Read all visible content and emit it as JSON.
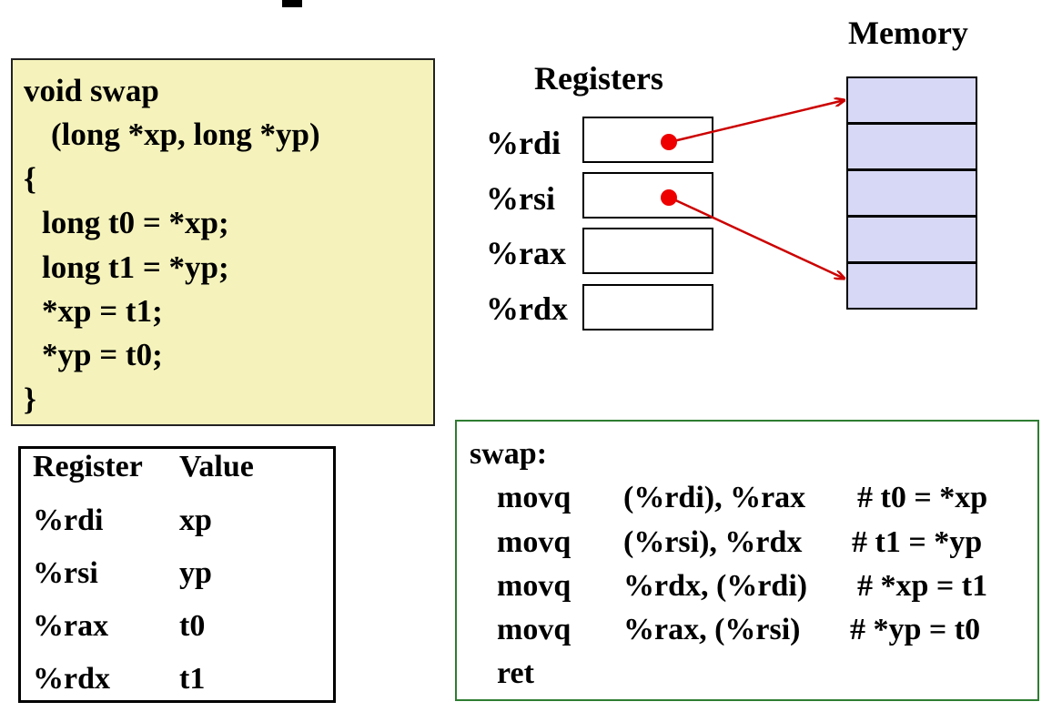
{
  "colors": {
    "code_bg": "#f5f3bb",
    "memory_fill": "#d7d8f5",
    "pointer": "#cc0000",
    "asm_border": "#2e7d32"
  },
  "c_code": {
    "lines": [
      "void swap",
      "(long *xp, long *yp)",
      "{",
      "long t0 = *xp;",
      "long t1 = *yp;",
      "*xp = t1;",
      "*yp = t0;",
      "}"
    ]
  },
  "register_table": {
    "headers": [
      "Register",
      "Value"
    ],
    "rows": [
      [
        "%rdi",
        "xp"
      ],
      [
        "%rsi",
        "yp"
      ],
      [
        "%rax",
        "t0"
      ],
      [
        "%rdx",
        "t1"
      ]
    ]
  },
  "registers": {
    "title": "Registers",
    "names": [
      "%rdi",
      "%rsi",
      "%rax",
      "%rdx"
    ]
  },
  "memory": {
    "title": "Memory",
    "cell_count": 5
  },
  "pointers": [
    {
      "from": "%rdi",
      "to_memory_cell": 1
    },
    {
      "from": "%rsi",
      "to_memory_cell": 5
    }
  ],
  "assembly": {
    "label": "swap:",
    "instructions": [
      {
        "op": "movq",
        "args": "(%rdi), %rax",
        "comment": "# t0 = *xp"
      },
      {
        "op": "movq",
        "args": "(%rsi), %rdx",
        "comment": "# t1 = *yp"
      },
      {
        "op": "movq",
        "args": "%rdx, (%rdi)",
        "comment": "# *xp = t1"
      },
      {
        "op": "movq",
        "args": "%rax, (%rsi)",
        "comment": "# *yp = t0"
      },
      {
        "op": "ret",
        "args": "",
        "comment": ""
      }
    ]
  }
}
